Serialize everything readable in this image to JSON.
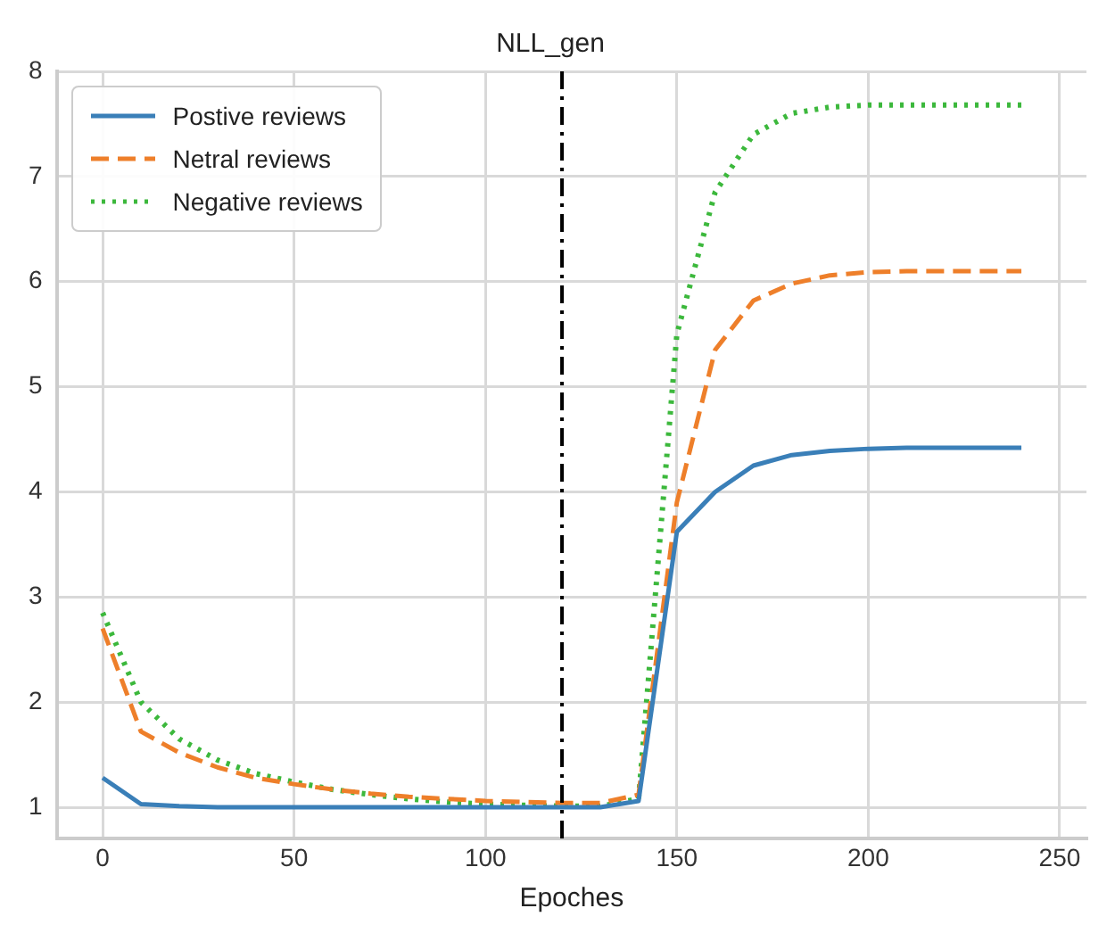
{
  "chart_data": {
    "type": "line",
    "title": "NLL_gen",
    "xlabel": "Epoches",
    "x": [
      0,
      10,
      20,
      30,
      40,
      50,
      60,
      70,
      80,
      90,
      100,
      110,
      120,
      130,
      140,
      150,
      160,
      170,
      180,
      190,
      200,
      210,
      220,
      230,
      240
    ],
    "series": [
      {
        "name": "Postive reviews",
        "color": "#3a7fb8",
        "line_style": "solid",
        "values": [
          1.28,
          1.03,
          1.01,
          1.0,
          1.0,
          1.0,
          1.0,
          1.0,
          1.0,
          1.0,
          1.0,
          1.0,
          1.0,
          1.0,
          1.06,
          3.62,
          4.0,
          4.25,
          4.35,
          4.39,
          4.41,
          4.42,
          4.42,
          4.42,
          4.42
        ]
      },
      {
        "name": "Netral reviews",
        "color": "#ee7f2a",
        "line_style": "dashed",
        "values": [
          2.7,
          1.72,
          1.52,
          1.38,
          1.28,
          1.22,
          1.17,
          1.13,
          1.1,
          1.08,
          1.06,
          1.05,
          1.04,
          1.04,
          1.12,
          3.9,
          5.35,
          5.82,
          5.98,
          6.06,
          6.09,
          6.1,
          6.1,
          6.1,
          6.1
        ]
      },
      {
        "name": "Negative reviews",
        "color": "#3cb83c",
        "line_style": "dotted",
        "values": [
          2.85,
          2.0,
          1.65,
          1.45,
          1.32,
          1.24,
          1.17,
          1.12,
          1.08,
          1.05,
          1.03,
          1.02,
          1.01,
          1.01,
          1.08,
          5.5,
          6.85,
          7.4,
          7.6,
          7.66,
          7.68,
          7.68,
          7.68,
          7.68,
          7.68
        ]
      }
    ],
    "xlim": [
      -12,
      257
    ],
    "ylim": [
      0.7,
      8
    ],
    "xticks": [
      0,
      50,
      100,
      150,
      200,
      250
    ],
    "yticks": [
      1,
      2,
      3,
      4,
      5,
      6,
      7,
      8
    ],
    "ref_lines": [
      {
        "axis": "x",
        "value": 120,
        "color": "#000000"
      }
    ],
    "grid": true,
    "legend": "top left",
    "marker": "none"
  }
}
